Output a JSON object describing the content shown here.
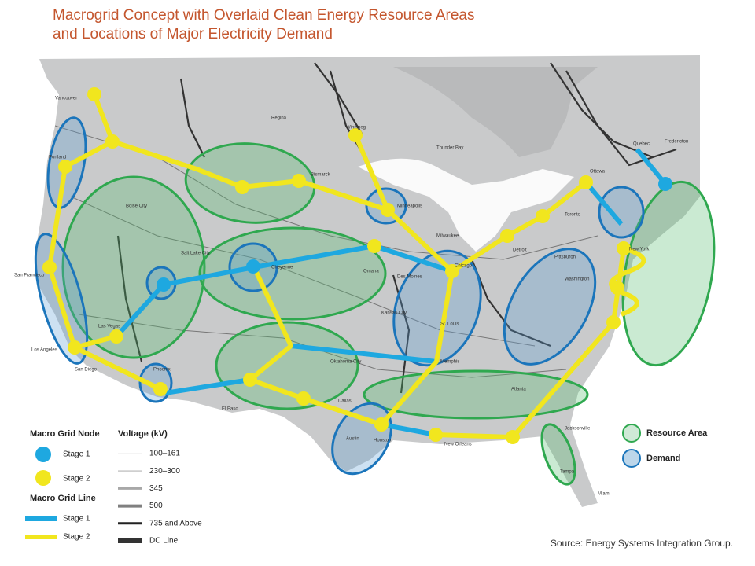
{
  "title": {
    "line1": "Macrogrid Concept with Overlaid Clean Energy Resource Areas",
    "line2": "and Locations of Major Electricity Demand"
  },
  "map": {
    "cities": [
      "Vancouver",
      "Regina",
      "Winnipeg",
      "Thunder Bay",
      "Quebec",
      "Fredericton",
      "Ottawa",
      "Toronto",
      "Portland",
      "Boise City",
      "Salt Lake City",
      "San Francisco",
      "Las Vegas",
      "Los Angeles",
      "San Diego",
      "Phoenix",
      "El Paso",
      "Cheyenne",
      "Bismarck",
      "Minneapolis",
      "Omaha",
      "Des Moines",
      "Kansas City",
      "St. Louis",
      "Chicago",
      "Milwaukee",
      "Detroit",
      "Pittsburgh",
      "Washington",
      "New York",
      "Oklahoma City",
      "Dallas",
      "Austin",
      "Houston",
      "New Orleans",
      "Memphis",
      "Atlanta",
      "Jacksonville",
      "Tampa",
      "Miami"
    ]
  },
  "legend": {
    "node_title": "Macro Grid Node",
    "node_items": [
      "Stage 1",
      "Stage 2"
    ],
    "line_title": "Macro Grid Line",
    "line_items": [
      "Stage 1",
      "Stage 2"
    ],
    "voltage_title": "Voltage (kV)",
    "voltage_items": [
      "100–161",
      "230–300",
      "345",
      "500",
      "735 and Above",
      "DC Line"
    ],
    "area_items": [
      "Resource Area",
      "Demand"
    ]
  },
  "source": "Source: Energy Systems Integration Group."
}
